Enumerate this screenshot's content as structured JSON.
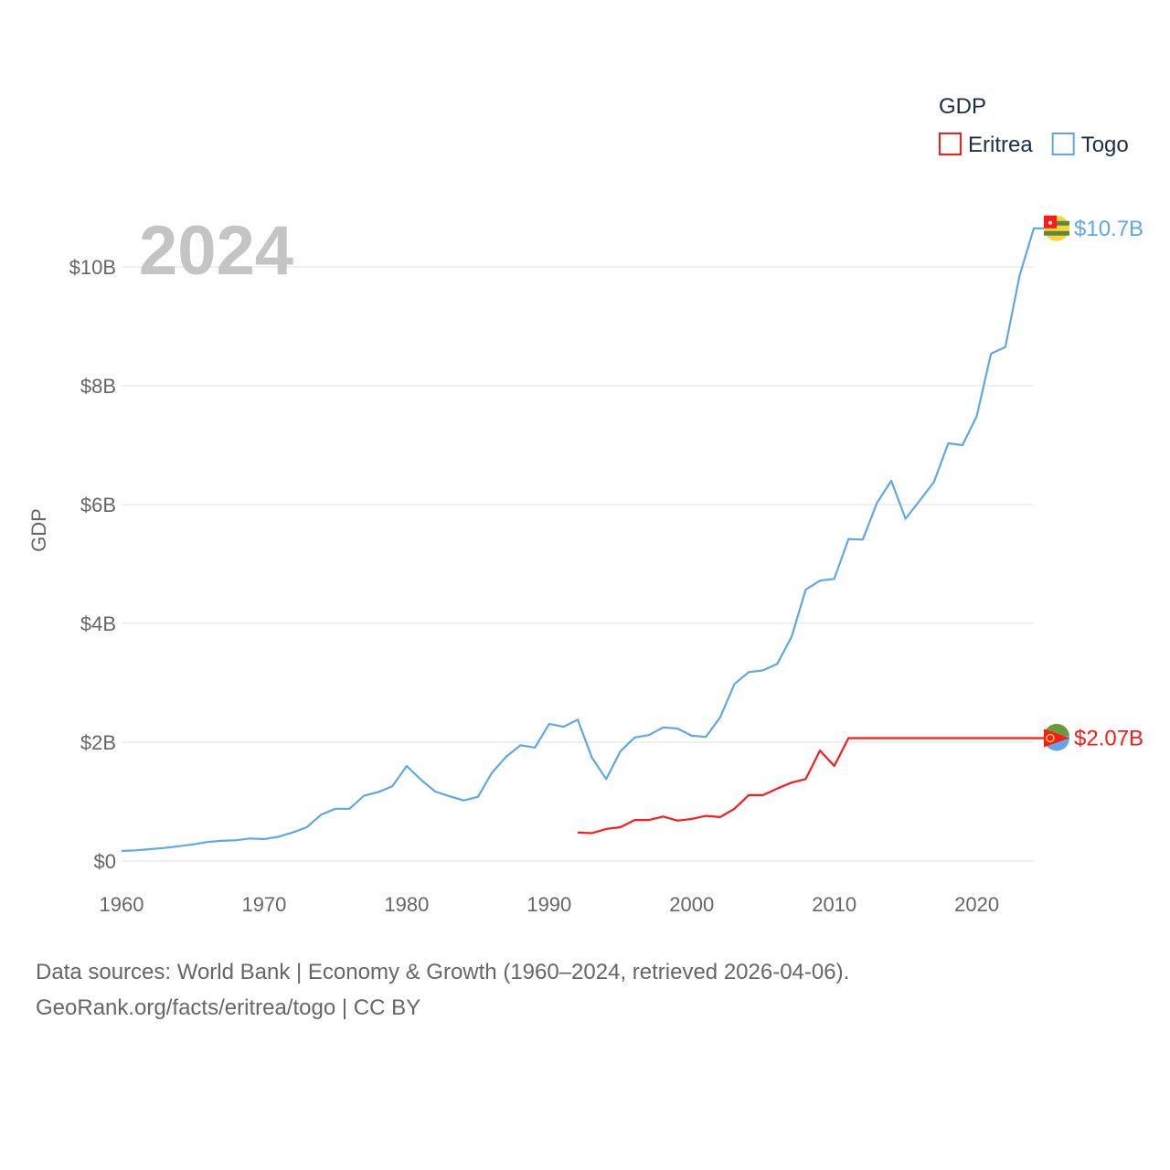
{
  "chart_data": {
    "type": "line",
    "title": "GDP",
    "year_label": "2024",
    "ylabel": "GDP",
    "xlabel": "",
    "xlim": [
      1960,
      2024
    ],
    "ylim": [
      0,
      10
    ],
    "grid": true,
    "legend_placement": "top-right",
    "x_ticks": [
      "1960",
      "1970",
      "1980",
      "1990",
      "2000",
      "2010",
      "2020"
    ],
    "x_tick_values": [
      1960,
      1970,
      1980,
      1990,
      2000,
      2010,
      2020
    ],
    "y_ticks": [
      "$0",
      "$2B",
      "$4B",
      "$6B",
      "$8B",
      "$10B"
    ],
    "y_tick_values": [
      0,
      2,
      4,
      6,
      8,
      10
    ],
    "series": [
      {
        "name": "Eritrea",
        "color": "#ff1a1a",
        "end_label": "$2.07B",
        "flag_icon": "eritrea-flag",
        "x": [
          1992,
          1993,
          1994,
          1995,
          1996,
          1997,
          1998,
          1999,
          2000,
          2001,
          2002,
          2003,
          2004,
          2005,
          2006,
          2007,
          2008,
          2009,
          2010,
          2011,
          2024
        ],
        "values": [
          0.48,
          0.47,
          0.54,
          0.57,
          0.69,
          0.69,
          0.75,
          0.68,
          0.71,
          0.76,
          0.74,
          0.88,
          1.11,
          1.11,
          1.22,
          1.32,
          1.38,
          1.86,
          1.6,
          2.07,
          2.07
        ]
      },
      {
        "name": "Togo",
        "color": "#5fa8e8",
        "end_label": "$10.7B",
        "flag_icon": "togo-flag",
        "x": [
          1960,
          1961,
          1962,
          1963,
          1964,
          1965,
          1966,
          1967,
          1968,
          1969,
          1970,
          1971,
          1972,
          1973,
          1974,
          1975,
          1976,
          1977,
          1978,
          1979,
          1980,
          1981,
          1982,
          1983,
          1984,
          1985,
          1986,
          1987,
          1988,
          1989,
          1990,
          1991,
          1992,
          1993,
          1994,
          1995,
          1996,
          1997,
          1998,
          1999,
          2000,
          2001,
          2002,
          2003,
          2004,
          2005,
          2006,
          2007,
          2008,
          2009,
          2010,
          2011,
          2012,
          2013,
          2014,
          2015,
          2016,
          2017,
          2018,
          2019,
          2020,
          2021,
          2022,
          2023,
          2024
        ],
        "values": [
          0.17,
          0.18,
          0.2,
          0.22,
          0.25,
          0.28,
          0.32,
          0.34,
          0.35,
          0.38,
          0.37,
          0.41,
          0.48,
          0.57,
          0.78,
          0.88,
          0.88,
          1.1,
          1.16,
          1.26,
          1.6,
          1.37,
          1.17,
          1.09,
          1.02,
          1.08,
          1.49,
          1.76,
          1.95,
          1.91,
          2.31,
          2.26,
          2.38,
          1.74,
          1.38,
          1.85,
          2.08,
          2.12,
          2.25,
          2.23,
          2.11,
          2.09,
          2.42,
          2.98,
          3.18,
          3.21,
          3.32,
          3.77,
          4.57,
          4.72,
          4.75,
          5.42,
          5.41,
          6.03,
          6.4,
          5.76,
          6.07,
          6.38,
          7.03,
          7.0,
          7.49,
          8.54,
          8.65,
          9.85,
          10.65
        ]
      }
    ]
  },
  "footer": {
    "line1": "Data sources: World Bank | Economy & Growth (1960–2024, retrieved 2026-04-06).",
    "line2": "GeoRank.org/facts/eritrea/togo | CC BY"
  }
}
